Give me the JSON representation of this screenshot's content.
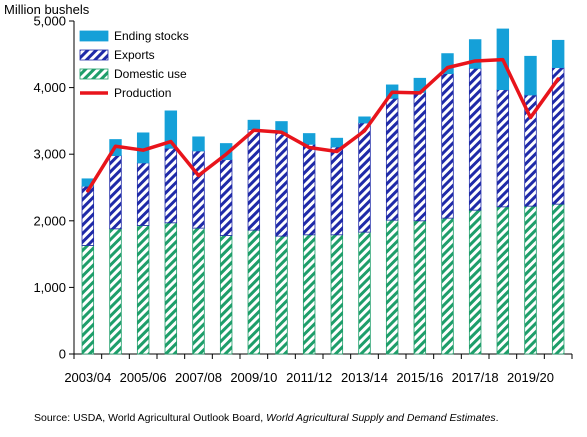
{
  "chart_data": {
    "type": "bar",
    "subtype": "stacked bar with line overlay",
    "y_unit_label": "Million bushels",
    "ylim": [
      0,
      5000
    ],
    "y_ticks": [
      "0",
      "1,000",
      "2,000",
      "3,000",
      "4,000",
      "5,000"
    ],
    "y_tick_values": [
      0,
      1000,
      2000,
      3000,
      4000,
      5000
    ],
    "categories": [
      "2003/04",
      "2004/05",
      "2005/06",
      "2006/07",
      "2007/08",
      "2008/09",
      "2009/10",
      "2010/11",
      "2011/12",
      "2012/13",
      "2013/14",
      "2014/15",
      "2015/16",
      "2016/17",
      "2017/18",
      "2018/19",
      "2019/20",
      "2020/21"
    ],
    "x_tick_labels": [
      "2003/04",
      "2005/06",
      "2007/08",
      "2009/10",
      "2011/12",
      "2013/14",
      "2015/16",
      "2017/18",
      "2019/20"
    ],
    "grid": false,
    "legend_position": "top-left",
    "series": [
      {
        "name": "Domestic use",
        "kind": "bar",
        "color": "#1e9e6a",
        "pattern": "diagonal-green",
        "values": [
          1630,
          1880,
          1930,
          1970,
          1890,
          1780,
          1860,
          1770,
          1790,
          1790,
          1830,
          2010,
          2000,
          2040,
          2160,
          2210,
          2220,
          2250
        ]
      },
      {
        "name": "Exports",
        "kind": "bar",
        "color": "#1f2aa8",
        "pattern": "diagonal-blue",
        "values": [
          890,
          1100,
          940,
          1120,
          1160,
          1140,
          1510,
          1560,
          1360,
          1320,
          1640,
          1830,
          1930,
          2170,
          2130,
          1760,
          1670,
          2050
        ]
      },
      {
        "name": "Ending stocks",
        "kind": "bar",
        "color": "#15a0d8",
        "values": [
          110,
          240,
          450,
          560,
          210,
          240,
          140,
          160,
          160,
          130,
          90,
          200,
          210,
          300,
          430,
          910,
          580,
          410
        ]
      },
      {
        "name": "Production",
        "kind": "line",
        "color": "#e8141b",
        "values": [
          2450,
          3120,
          3060,
          3190,
          2680,
          3000,
          3360,
          3330,
          3100,
          3040,
          3350,
          3930,
          3920,
          4300,
          4400,
          4420,
          3550,
          4130
        ]
      }
    ],
    "source": {
      "prefix": "Source: USDA, World Agricultural Outlook Board, ",
      "italic": "World Agricultural Supply and Demand Estimates",
      "suffix": "."
    }
  }
}
